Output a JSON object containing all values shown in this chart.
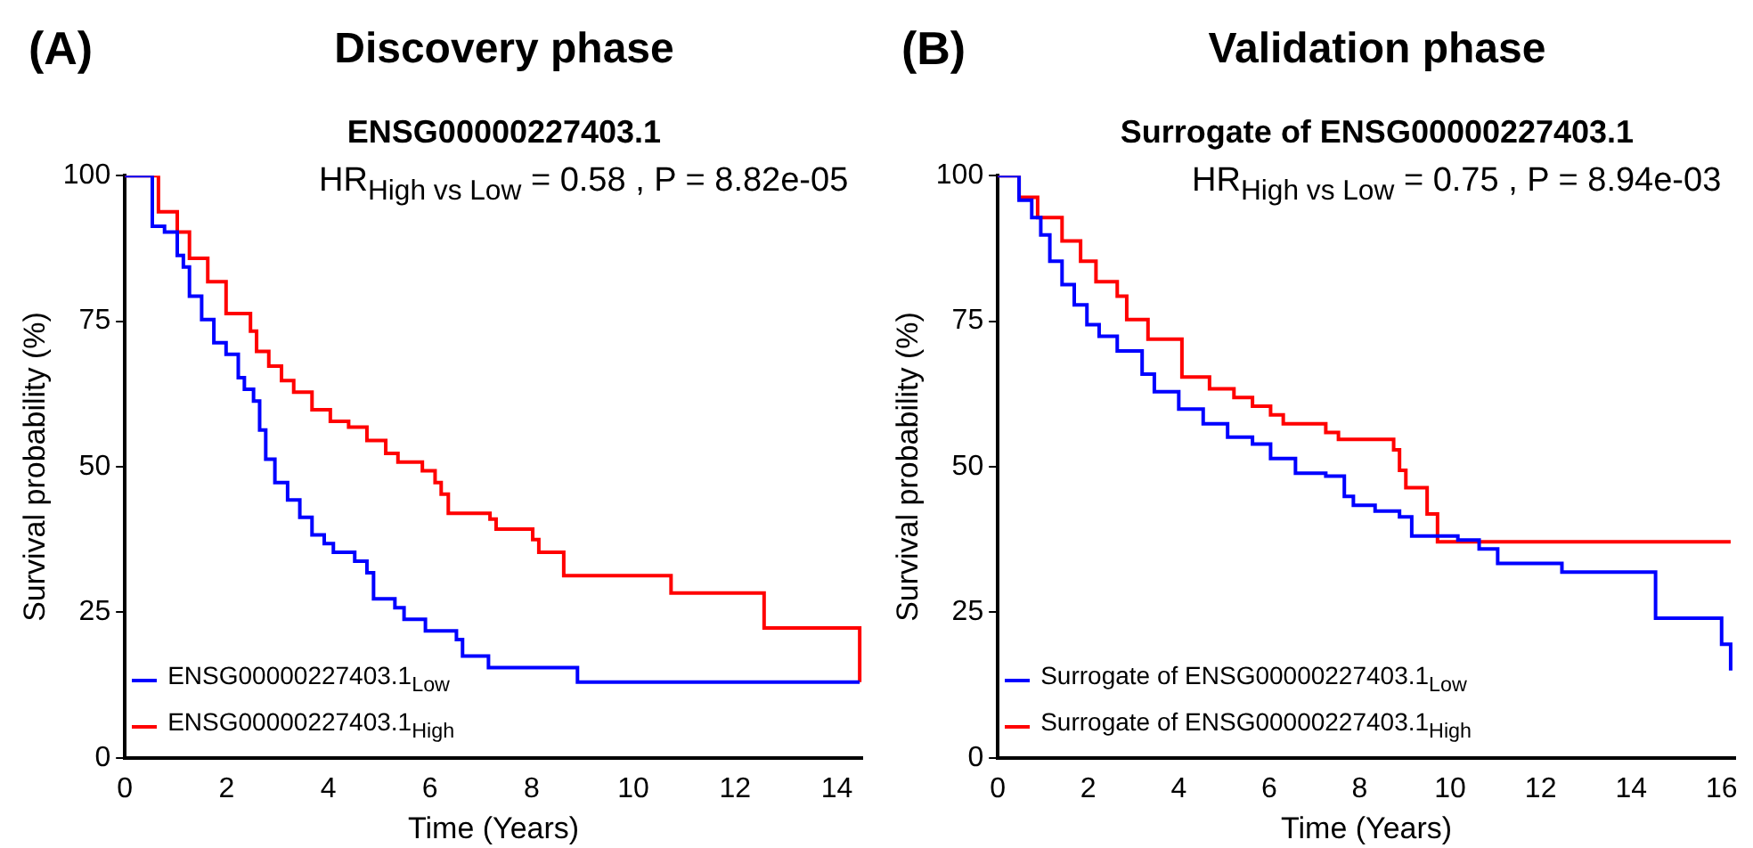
{
  "chart_data": [
    {
      "type": "step",
      "title": "Discovery phase",
      "subtitle": "ENSG00000227403.1",
      "xlabel": "Time (Years)",
      "ylabel": "Survival probability (%)",
      "annotations": [
        "(A)",
        "HR$_{High vs Low}$ = 0.58 , P = 8.82e-05"
      ],
      "xlim": [
        0,
        14.5
      ],
      "xticks": [
        0,
        2,
        4,
        6,
        8,
        10,
        12,
        14
      ],
      "ylim": [
        0,
        100
      ],
      "yticks": [
        0,
        25,
        50,
        75,
        100
      ],
      "grid": false,
      "legend": "bottom left",
      "series": [
        {
          "name": "ENSG00000227403.1$_{Low}$",
          "color": "#0000ff",
          "x": [
            0,
            0.54,
            0.78,
            1.03,
            1.15,
            1.27,
            1.51,
            1.75,
            1.99,
            2.23,
            2.35,
            2.53,
            2.65,
            2.77,
            2.95,
            3.2,
            3.44,
            3.68,
            3.92,
            4.1,
            4.52,
            4.76,
            4.89,
            5.31,
            5.49,
            5.91,
            6.52,
            6.64,
            7.15,
            8.9,
            14.45
          ],
          "values": [
            100,
            91.3,
            90.3,
            86.3,
            84.3,
            79.3,
            75.3,
            71.3,
            69.3,
            65.3,
            63.3,
            61.3,
            56.3,
            51.3,
            47.3,
            44.3,
            41.3,
            38.3,
            36.8,
            35.3,
            33.8,
            31.8,
            27.3,
            25.8,
            23.8,
            21.8,
            20.3,
            17.5,
            15.5,
            13,
            13
          ]
        },
        {
          "name": "ENSG00000227403.1$_{High}$",
          "color": "#ff0000",
          "x": [
            0,
            0.66,
            1.03,
            1.27,
            1.63,
            1.99,
            2.47,
            2.59,
            2.83,
            3.08,
            3.32,
            3.68,
            4.04,
            4.4,
            4.76,
            5.13,
            5.37,
            5.85,
            6.1,
            6.22,
            6.36,
            7.18,
            7.3,
            8.02,
            8.14,
            8.63,
            10.74,
            12.57,
            14.45,
            14.45
          ],
          "values": [
            100,
            93.8,
            90.3,
            85.8,
            81.8,
            76.3,
            73.3,
            69.8,
            67.3,
            64.8,
            62.8,
            59.8,
            57.8,
            56.8,
            54.5,
            52.3,
            50.8,
            49.3,
            47.3,
            45.3,
            42,
            41,
            39.3,
            37.5,
            35.3,
            31.3,
            28.3,
            22.3,
            22.3,
            13
          ]
        }
      ]
    },
    {
      "type": "step",
      "title": "Validation phase",
      "subtitle": "Surrogate of ENSG00000227403.1",
      "xlabel": "Time (Years)",
      "ylabel": "Survival probability (%)",
      "annotations": [
        "(B)",
        "HR$_{High vs Low}$ = 0.75 , P = 8.94e-03"
      ],
      "xlim": [
        0,
        16.3
      ],
      "xticks": [
        0,
        2,
        4,
        6,
        8,
        10,
        12,
        14,
        16
      ],
      "ylim": [
        0,
        100
      ],
      "yticks": [
        0,
        25,
        50,
        75,
        100
      ],
      "grid": false,
      "legend": "bottom left",
      "series": [
        {
          "name": "Surrogate of ENSG00000227403.1$_{Low}$",
          "color": "#0000ff",
          "x": [
            0,
            0.47,
            0.75,
            0.95,
            1.15,
            1.42,
            1.69,
            1.97,
            2.24,
            2.64,
            3.19,
            3.46,
            4.0,
            4.54,
            5.08,
            5.63,
            6.03,
            6.58,
            7.25,
            7.66,
            7.86,
            8.34,
            8.88,
            9.15,
            10.17,
            10.64,
            11.05,
            12.47,
            14.54,
            16.0,
            16.2
          ],
          "values": [
            100,
            95.8,
            92.8,
            89.8,
            85.3,
            81.3,
            77.8,
            74.4,
            72.4,
            69.9,
            65.9,
            62.9,
            59.9,
            57.4,
            55.1,
            53.9,
            51.4,
            48.9,
            48.4,
            44.9,
            43.4,
            42.4,
            41.4,
            38.1,
            37.4,
            35.9,
            33.4,
            31.9,
            24,
            19.5,
            15
          ]
        },
        {
          "name": "Surrogate of ENSG00000227403.1$_{High}$",
          "color": "#ff0000",
          "x": [
            0,
            0.47,
            0.88,
            1.42,
            1.83,
            2.17,
            2.64,
            2.85,
            3.32,
            4.07,
            4.68,
            5.22,
            5.63,
            6.03,
            6.31,
            7.25,
            7.53,
            8.75,
            8.88,
            9.02,
            9.49,
            9.72,
            16.2
          ],
          "values": [
            100,
            96.3,
            92.8,
            88.8,
            85.3,
            81.8,
            79.3,
            75.3,
            71.9,
            65.4,
            63.4,
            61.9,
            60.4,
            58.9,
            57.4,
            55.9,
            54.7,
            52.9,
            49.4,
            46.4,
            41.9,
            37.1,
            37.1
          ]
        }
      ]
    }
  ]
}
